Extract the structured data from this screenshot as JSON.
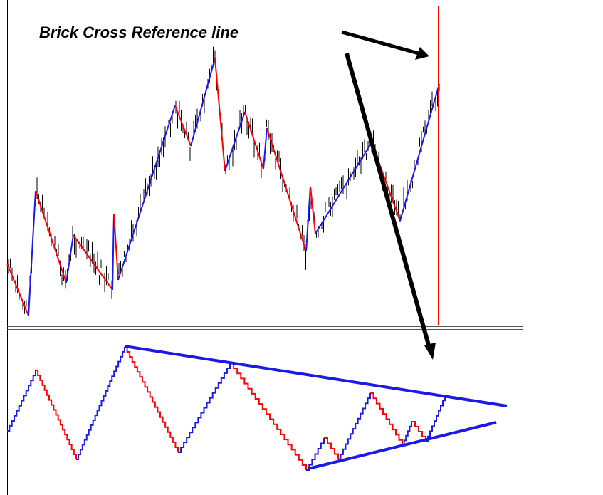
{
  "annotation": {
    "text": "Brick Cross Reference line"
  }
}
